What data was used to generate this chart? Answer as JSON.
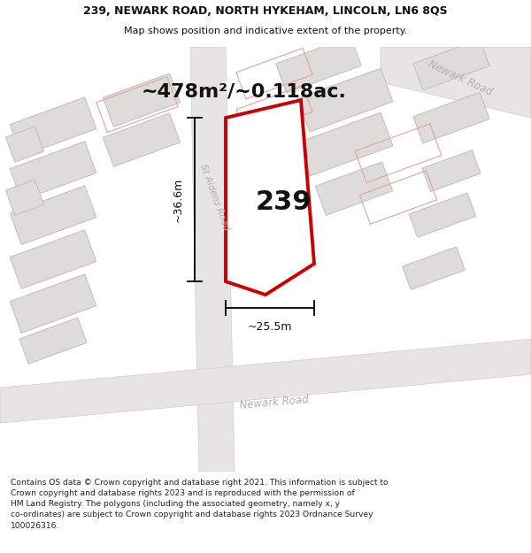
{
  "title_line1": "239, NEWARK ROAD, NORTH HYKEHAM, LINCOLN, LN6 8QS",
  "title_line2": "Map shows position and indicative extent of the property.",
  "area_text": "~478m²/~0.118ac.",
  "label_239": "239",
  "dim_width": "~25.5m",
  "dim_height": "~36.6m",
  "road_label_st_aidens": "St Aidens Road",
  "road_label_newark_bottom": "Newark Road",
  "road_label_newark_right": "Newark Road",
  "footer_lines": [
    "Contains OS data © Crown copyright and database right 2021. This information is subject to Crown copyright and database rights 2023 and is reproduced with the permission of",
    "HM Land Registry. The polygons (including the associated geometry, namely x, y co-ordinates) are subject to Crown copyright and database rights 2023 Ordnance Survey",
    "100026316."
  ],
  "map_bg": "#f0eeee",
  "road_fill": "#e6e4e4",
  "road_edge": "#d0cecd",
  "building_fill": "#dddcdb",
  "building_edge": "#c5c3c2",
  "plot_fill": "#ffffff",
  "plot_stroke": "#cc0000",
  "pink_line": "#e8a0a0",
  "dim_color": "#111111",
  "label_color": "#111111",
  "title_color": "#111111",
  "footer_color": "#222222",
  "road_text_color": "#b0aeae"
}
